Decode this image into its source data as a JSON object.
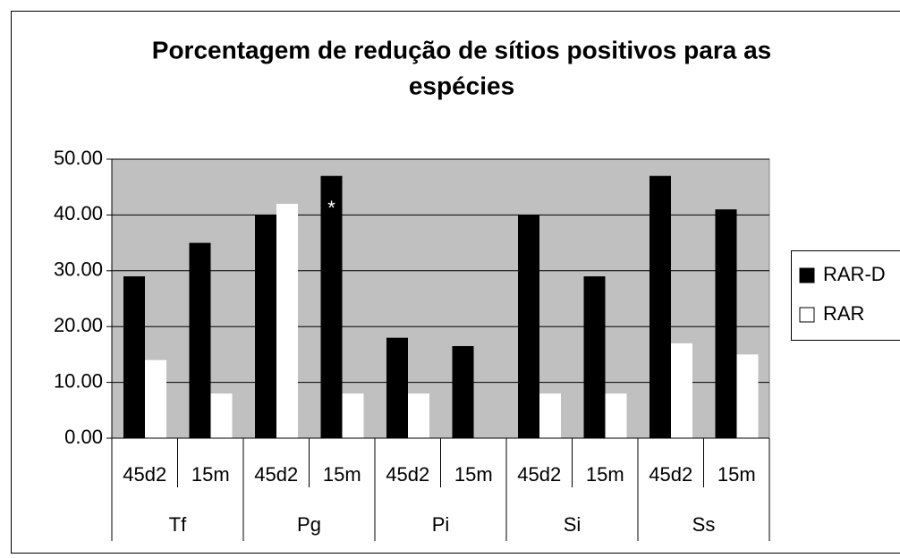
{
  "chart_data": {
    "type": "bar",
    "title": [
      "Porcentagem de redução de sítios positivos para as",
      "espécies"
    ],
    "categories": [
      "45d2",
      "15m",
      "45d2",
      "15m",
      "45d2",
      "15m",
      "45d2",
      "15m",
      "45d2",
      "15m"
    ],
    "groups": [
      "Tf",
      "Pg",
      "Pi",
      "Si",
      "Ss"
    ],
    "series": [
      {
        "name": "RAR-D",
        "color": "#000000",
        "values": [
          29,
          35,
          40,
          47,
          18,
          16.5,
          40,
          29,
          47,
          41
        ]
      },
      {
        "name": "RAR",
        "color": "#ffffff",
        "values": [
          14,
          8,
          42,
          8,
          8,
          null,
          8,
          8,
          17,
          15
        ]
      }
    ],
    "ylim": [
      0,
      50
    ],
    "yticks": [
      {
        "value": 0,
        "label": "0.00"
      },
      {
        "value": 10,
        "label": "10.00"
      },
      {
        "value": 20,
        "label": "20.00"
      },
      {
        "value": 30,
        "label": "30.00"
      },
      {
        "value": 40,
        "label": "40.00"
      },
      {
        "value": 50,
        "label": "50.00"
      }
    ],
    "grid": true,
    "plot_background": "#c0c0c0",
    "legend": "right",
    "annotations": [
      {
        "text": "*",
        "category": 3,
        "value": 41
      }
    ]
  }
}
